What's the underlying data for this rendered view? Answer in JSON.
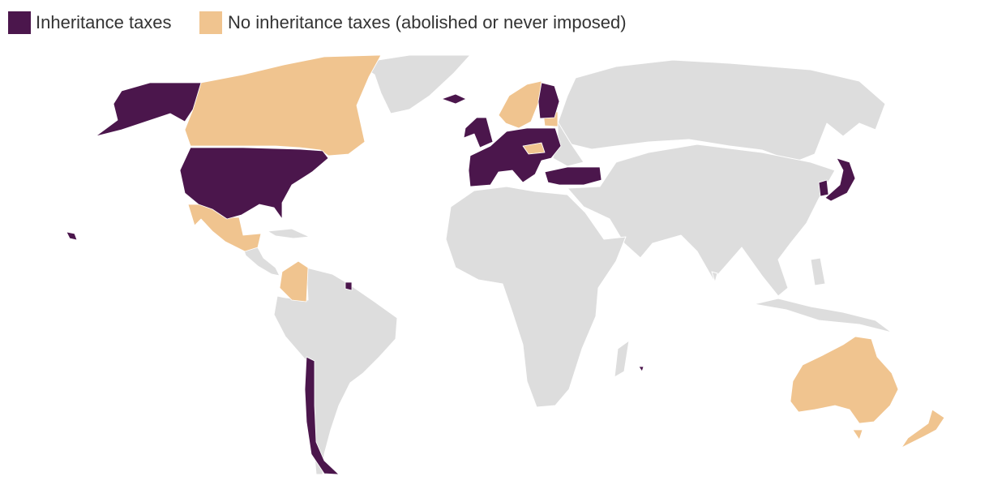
{
  "legend": [
    {
      "label": "Inheritance taxes",
      "color": "#4b164c"
    },
    {
      "label": "No inheritance taxes (abolished or never imposed)",
      "color": "#f0c48f"
    }
  ]
}
